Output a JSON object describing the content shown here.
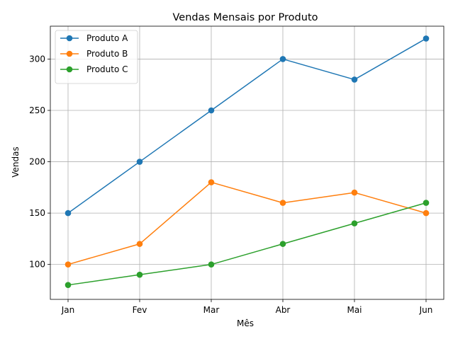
{
  "chart_data": {
    "type": "line",
    "title": "Vendas Mensais por Produto",
    "xlabel": "Mês",
    "ylabel": "Vendas",
    "categories": [
      "Jan",
      "Fev",
      "Mar",
      "Abr",
      "Mai",
      "Jun"
    ],
    "ylim": [
      66,
      332
    ],
    "yticks": [
      100,
      150,
      200,
      250,
      300
    ],
    "grid": true,
    "legend_position": "top-left",
    "marker": "circle",
    "series": [
      {
        "name": "Produto A",
        "color": "#1f77b4",
        "values": [
          150,
          200,
          250,
          300,
          280,
          320
        ]
      },
      {
        "name": "Produto B",
        "color": "#ff7f0e",
        "values": [
          100,
          120,
          180,
          160,
          170,
          150
        ]
      },
      {
        "name": "Produto C",
        "color": "#2ca02c",
        "values": [
          80,
          90,
          100,
          120,
          140,
          160
        ]
      }
    ]
  }
}
